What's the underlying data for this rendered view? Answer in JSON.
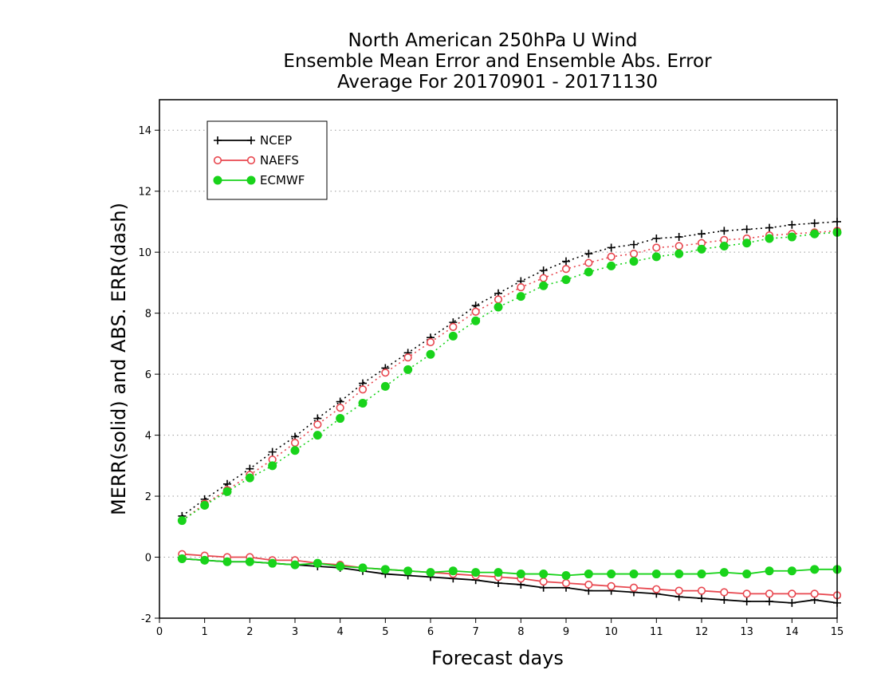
{
  "chart_data": {
    "type": "line",
    "title_lines": [
      "North American 250hPa U Wind",
      "Ensemble Mean Error and Ensemble Abs. Error",
      "Average For 20170901 - 20171130"
    ],
    "xlabel": "Forecast days",
    "ylabel": "MERR(solid) and ABS. ERR(dash)",
    "xlim": [
      0,
      15
    ],
    "ylim": [
      -2,
      15
    ],
    "xticks": [
      0,
      1,
      2,
      3,
      4,
      5,
      6,
      7,
      8,
      9,
      10,
      11,
      12,
      13,
      14,
      15
    ],
    "yticks": [
      -2,
      0,
      2,
      4,
      6,
      8,
      10,
      12,
      14
    ],
    "grid": "horizontal dotted",
    "legend_position": "top-left",
    "x": [
      0.5,
      1.0,
      1.5,
      2.0,
      2.5,
      3.0,
      3.5,
      4.0,
      4.5,
      5.0,
      5.5,
      6.0,
      6.5,
      7.0,
      7.5,
      8.0,
      8.5,
      9.0,
      9.5,
      10.0,
      10.5,
      11.0,
      11.5,
      12.0,
      12.5,
      13.0,
      13.5,
      14.0,
      14.5,
      15.0
    ],
    "series": [
      {
        "name": "NCEP",
        "color": "#000000",
        "marker": "plus",
        "mean_error": [
          -0.05,
          -0.1,
          -0.15,
          -0.15,
          -0.2,
          -0.25,
          -0.3,
          -0.35,
          -0.45,
          -0.55,
          -0.6,
          -0.65,
          -0.7,
          -0.75,
          -0.85,
          -0.9,
          -1.0,
          -1.0,
          -1.1,
          -1.1,
          -1.15,
          -1.2,
          -1.3,
          -1.35,
          -1.4,
          -1.45,
          -1.45,
          -1.5,
          -1.4,
          -1.5
        ],
        "abs_error": [
          1.35,
          1.9,
          2.4,
          2.9,
          3.45,
          3.95,
          4.55,
          5.1,
          5.7,
          6.2,
          6.7,
          7.2,
          7.7,
          8.25,
          8.65,
          9.05,
          9.4,
          9.7,
          9.95,
          10.15,
          10.25,
          10.45,
          10.5,
          10.6,
          10.7,
          10.75,
          10.8,
          10.9,
          10.95,
          11.0
        ]
      },
      {
        "name": "NAEFS",
        "color": "#e8474f",
        "marker": "open-circle",
        "mean_error": [
          0.1,
          0.05,
          0.0,
          0.0,
          -0.1,
          -0.1,
          -0.2,
          -0.25,
          -0.35,
          -0.4,
          -0.45,
          -0.5,
          -0.55,
          -0.6,
          -0.65,
          -0.7,
          -0.8,
          -0.85,
          -0.9,
          -0.95,
          -1.0,
          -1.05,
          -1.1,
          -1.1,
          -1.15,
          -1.2,
          -1.2,
          -1.2,
          -1.2,
          -1.25
        ],
        "abs_error": [
          1.2,
          1.75,
          2.2,
          2.7,
          3.2,
          3.75,
          4.35,
          4.9,
          5.5,
          6.05,
          6.55,
          7.05,
          7.55,
          8.05,
          8.45,
          8.85,
          9.15,
          9.45,
          9.65,
          9.85,
          9.95,
          10.15,
          10.2,
          10.3,
          10.4,
          10.45,
          10.55,
          10.6,
          10.65,
          10.7
        ]
      },
      {
        "name": "ECMWF",
        "color": "#19d31b",
        "marker": "filled-circle",
        "mean_error": [
          -0.05,
          -0.1,
          -0.15,
          -0.15,
          -0.2,
          -0.25,
          -0.2,
          -0.3,
          -0.35,
          -0.4,
          -0.45,
          -0.5,
          -0.45,
          -0.5,
          -0.5,
          -0.55,
          -0.55,
          -0.6,
          -0.55,
          -0.55,
          -0.55,
          -0.55,
          -0.55,
          -0.55,
          -0.5,
          -0.55,
          -0.45,
          -0.45,
          -0.4,
          -0.4
        ],
        "abs_error": [
          1.2,
          1.7,
          2.15,
          2.6,
          3.0,
          3.5,
          4.0,
          4.55,
          5.05,
          5.6,
          6.15,
          6.65,
          7.25,
          7.75,
          8.2,
          8.55,
          8.9,
          9.1,
          9.35,
          9.55,
          9.7,
          9.85,
          9.95,
          10.1,
          10.2,
          10.3,
          10.45,
          10.5,
          10.6,
          10.65
        ]
      }
    ]
  }
}
